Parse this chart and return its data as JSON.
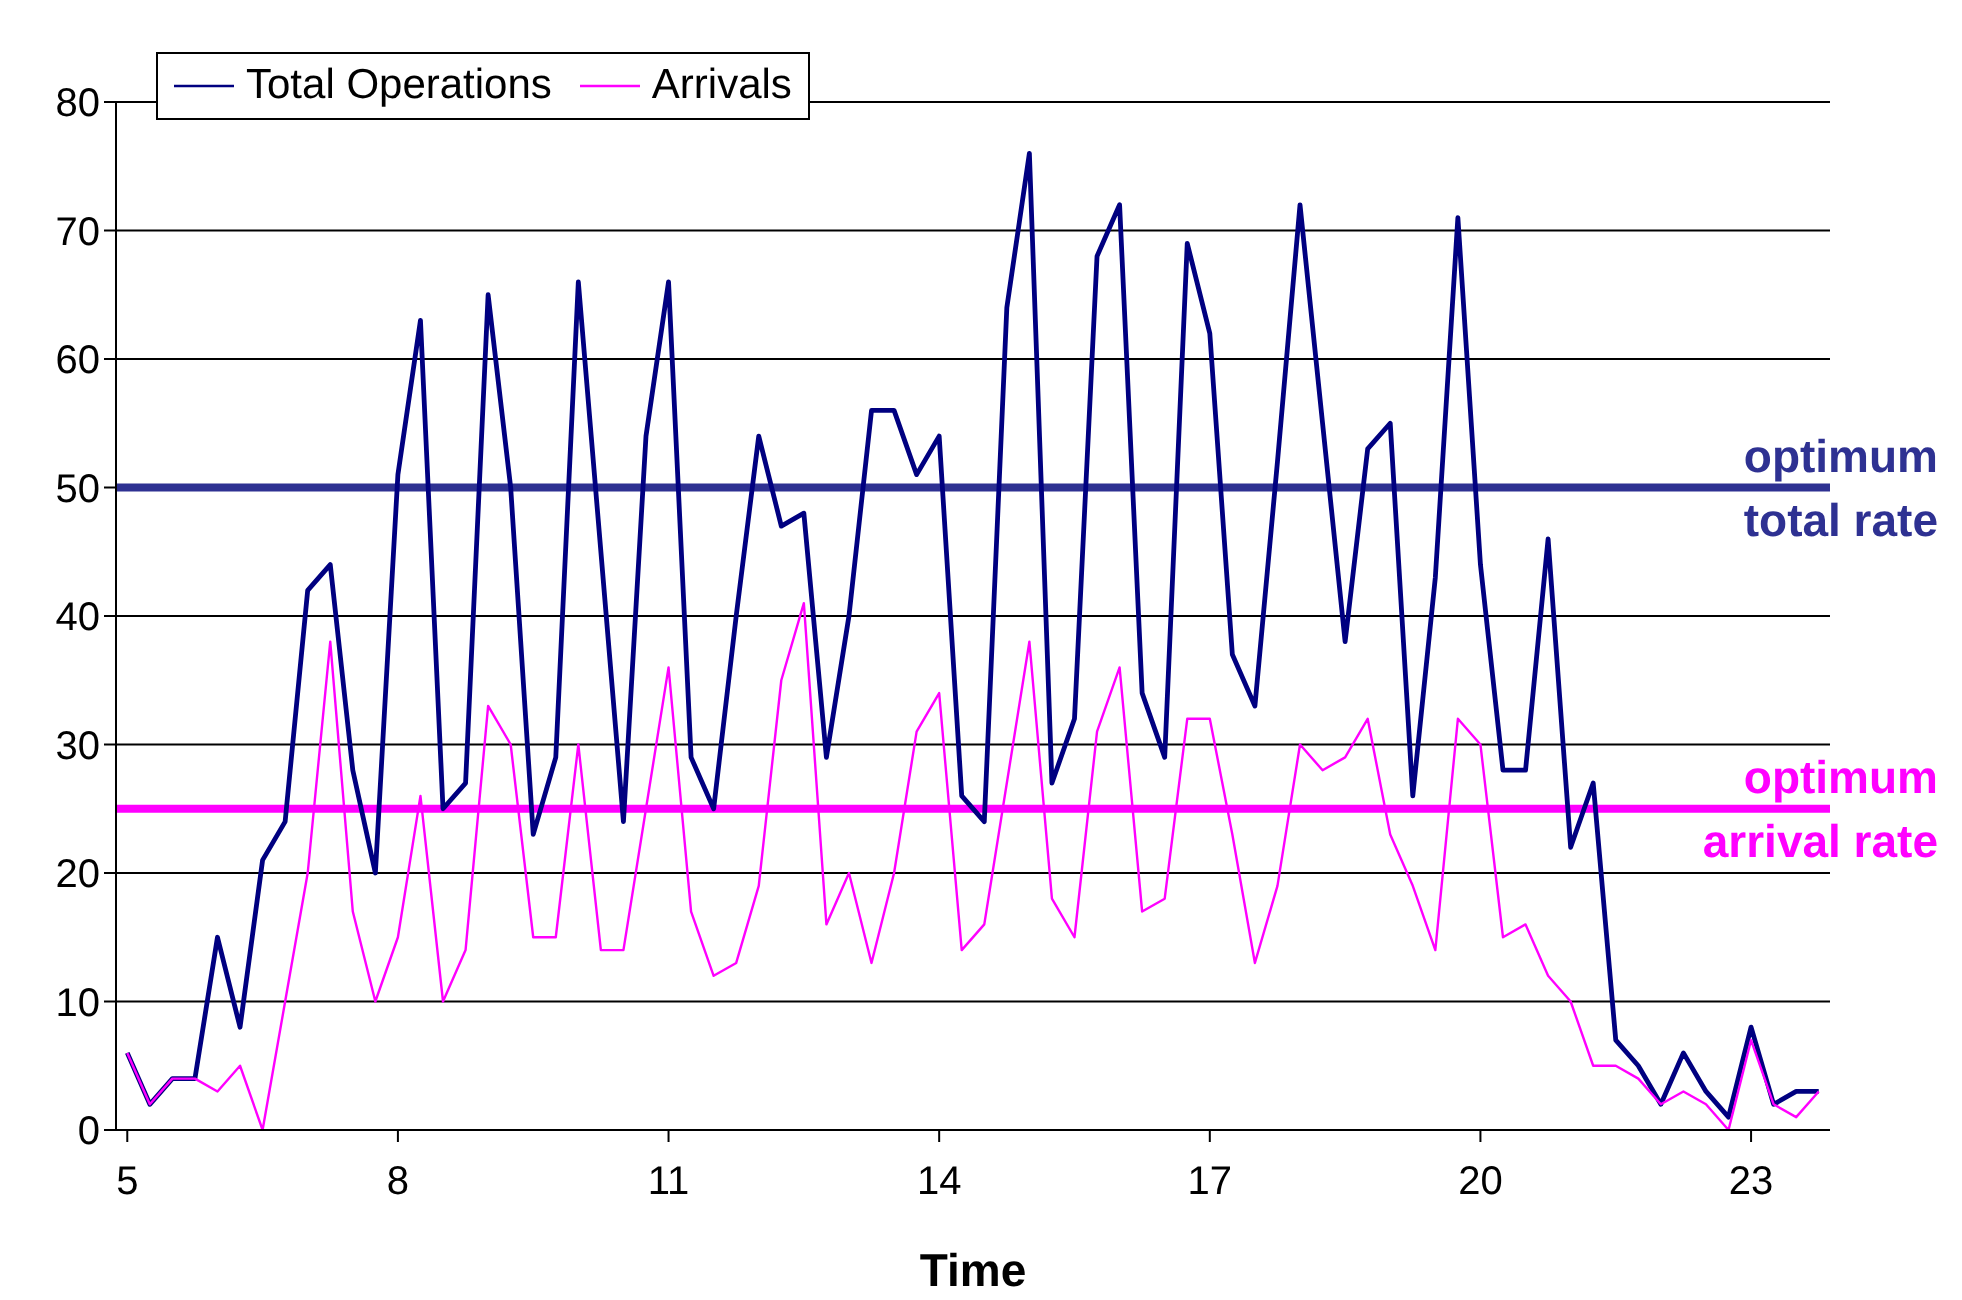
{
  "chart_data": {
    "type": "line",
    "xlabel": "Time",
    "x": [
      5,
      5.25,
      5.5,
      5.75,
      6,
      6.25,
      6.5,
      6.75,
      7,
      7.25,
      7.5,
      7.75,
      8,
      8.25,
      8.5,
      8.75,
      9,
      9.25,
      9.5,
      9.75,
      10,
      10.25,
      10.5,
      10.75,
      11,
      11.25,
      11.5,
      11.75,
      12,
      12.25,
      12.5,
      12.75,
      13,
      13.25,
      13.5,
      13.75,
      14,
      14.25,
      14.5,
      14.75,
      15,
      15.25,
      15.5,
      15.75,
      16,
      16.25,
      16.5,
      16.75,
      17,
      17.25,
      17.5,
      17.75,
      18,
      18.25,
      18.5,
      18.75,
      19,
      19.25,
      19.5,
      19.75,
      20,
      20.25,
      20.5,
      20.75,
      21,
      21.25,
      21.5,
      21.75,
      22,
      22.25,
      22.5,
      22.75,
      23,
      23.25,
      23.5,
      23.75
    ],
    "series": [
      {
        "name": "Total Operations",
        "color": "#000080",
        "values": [
          6,
          2,
          4,
          4,
          15,
          8,
          21,
          24,
          42,
          44,
          28,
          20,
          51,
          63,
          25,
          27,
          65,
          50,
          23,
          29,
          66,
          45,
          24,
          54,
          66,
          29,
          25,
          40,
          54,
          47,
          48,
          29,
          40,
          56,
          56,
          51,
          54,
          26,
          24,
          64,
          76,
          27,
          32,
          68,
          72,
          34,
          29,
          69,
          62,
          37,
          33,
          52,
          72,
          55,
          38,
          53,
          55,
          26,
          43,
          71,
          44,
          28,
          28,
          46,
          22,
          27,
          7,
          5,
          2,
          6,
          3,
          1,
          8,
          2,
          3,
          3
        ]
      },
      {
        "name": "Arrivals",
        "color": "#ff00ff",
        "values": [
          6,
          2,
          4,
          4,
          3,
          5,
          0,
          10,
          20,
          38,
          17,
          10,
          15,
          26,
          10,
          14,
          33,
          30,
          15,
          15,
          30,
          14,
          14,
          25,
          36,
          17,
          12,
          13,
          19,
          35,
          41,
          16,
          20,
          13,
          20,
          31,
          34,
          14,
          16,
          27,
          38,
          18,
          15,
          31,
          36,
          17,
          18,
          32,
          32,
          23,
          13,
          19,
          30,
          28,
          29,
          32,
          23,
          19,
          14,
          32,
          30,
          15,
          16,
          12,
          10,
          5,
          5,
          4,
          2,
          3,
          2,
          0,
          7,
          2,
          1,
          3
        ]
      }
    ],
    "xlim": [
      4.875,
      23.875
    ],
    "xticks": [
      5,
      8,
      11,
      14,
      17,
      20,
      23
    ],
    "ylim": [
      0,
      80
    ],
    "yticks": [
      0,
      10,
      20,
      30,
      40,
      50,
      60,
      70,
      80
    ],
    "ref_lines": [
      {
        "axis": "y",
        "value": 50,
        "label": "optimum\ntotal rate",
        "color": "#2e3192"
      },
      {
        "axis": "y",
        "value": 25,
        "label": "optimum\narrival rate",
        "color": "#ff00ff"
      }
    ],
    "grid": "y",
    "legend": "top left",
    "marker": "none",
    "line_style": "solid"
  }
}
